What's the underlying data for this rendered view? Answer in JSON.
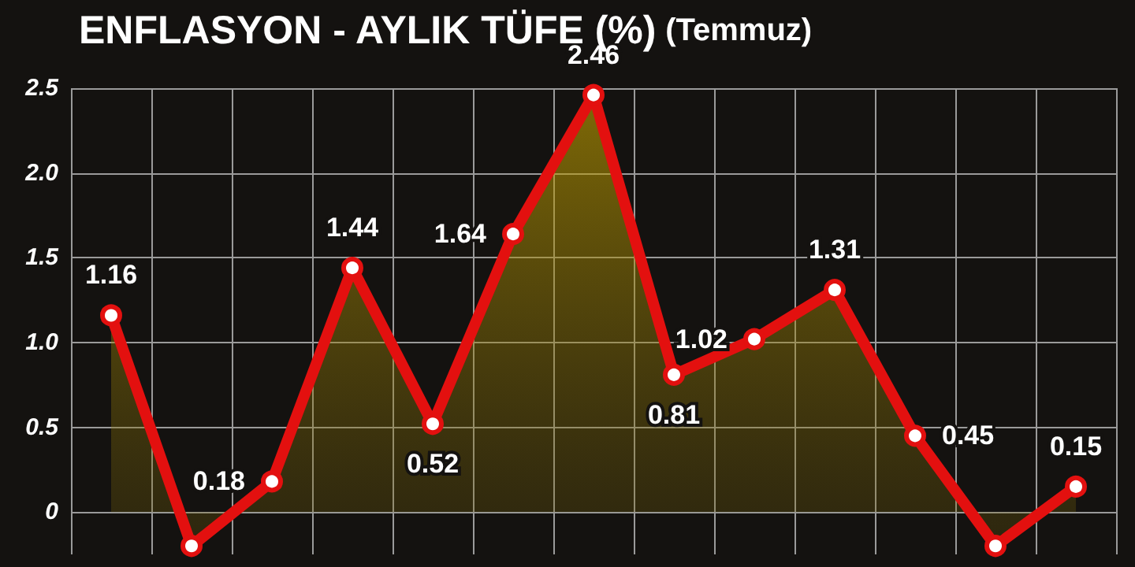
{
  "chart_data": {
    "type": "area",
    "title": "ENFLASYON - AYLIK TÜFE (%)",
    "subtitle": "(Temmuz)",
    "categories": [
      null,
      null,
      null,
      null,
      null,
      null,
      null,
      null,
      null,
      null,
      null,
      null,
      null
    ],
    "series": [
      {
        "color": "#e3100f",
        "values": [
          1.16,
          -0.2,
          0.18,
          1.44,
          0.52,
          1.64,
          2.46,
          0.81,
          1.02,
          1.31,
          0.45,
          -0.2,
          0.15
        ],
        "value_labels": [
          "1.16",
          null,
          "0.18",
          "1.44",
          "0.52",
          "1.64",
          "2.46",
          "0.81",
          "1.02",
          "1.31",
          "0.45",
          null,
          "0.15"
        ]
      }
    ],
    "ylim": [
      -0.25,
      2.5
    ],
    "yticks": [
      0,
      0.5,
      {
        "value": 1,
        "label": "1.0"
      },
      1.5,
      {
        "value": 2,
        "label": "2.0"
      },
      2.5
    ],
    "grid": true,
    "marker": "circle",
    "line_style": "solid"
  }
}
